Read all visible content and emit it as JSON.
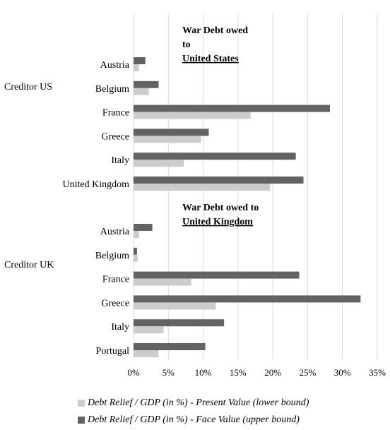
{
  "chart_data": {
    "type": "bar",
    "orientation": "horizontal",
    "xlim": [
      0,
      35
    ],
    "x_ticks": [
      "0%",
      "5%",
      "10%",
      "15%",
      "20%",
      "25%",
      "30%",
      "35%"
    ],
    "grid": "vertical",
    "legend_placement": "bottom",
    "series": [
      {
        "name": "Debt Relief / GDP (in %) - Present Value (lower bound)",
        "color": "#cccccc"
      },
      {
        "name": "Debt Relief / GDP (in %) - Face Value (upper bound)",
        "color": "#636363"
      }
    ],
    "groups": [
      {
        "group_label": "Creditor US",
        "title_lines": [
          "War Debt owed",
          "to",
          "United States"
        ],
        "categories": [
          "Austria",
          "Belgium",
          "France",
          "Greece",
          "Italy",
          "United Kingdom"
        ],
        "present_value": [
          0.8,
          2.2,
          16.8,
          9.7,
          7.2,
          19.6
        ],
        "face_value": [
          1.7,
          3.6,
          28.2,
          10.8,
          23.3,
          24.4
        ]
      },
      {
        "group_label": "Creditor UK",
        "title_lines": [
          "War Debt owed to",
          "United Kingdom"
        ],
        "categories": [
          "Austria",
          "Belgium",
          "France",
          "Greece",
          "Italy",
          "Portugal"
        ],
        "present_value": [
          0.8,
          0.6,
          8.3,
          11.8,
          4.3,
          3.6
        ],
        "face_value": [
          2.7,
          0.5,
          23.8,
          32.6,
          13.0,
          10.3
        ]
      }
    ]
  }
}
